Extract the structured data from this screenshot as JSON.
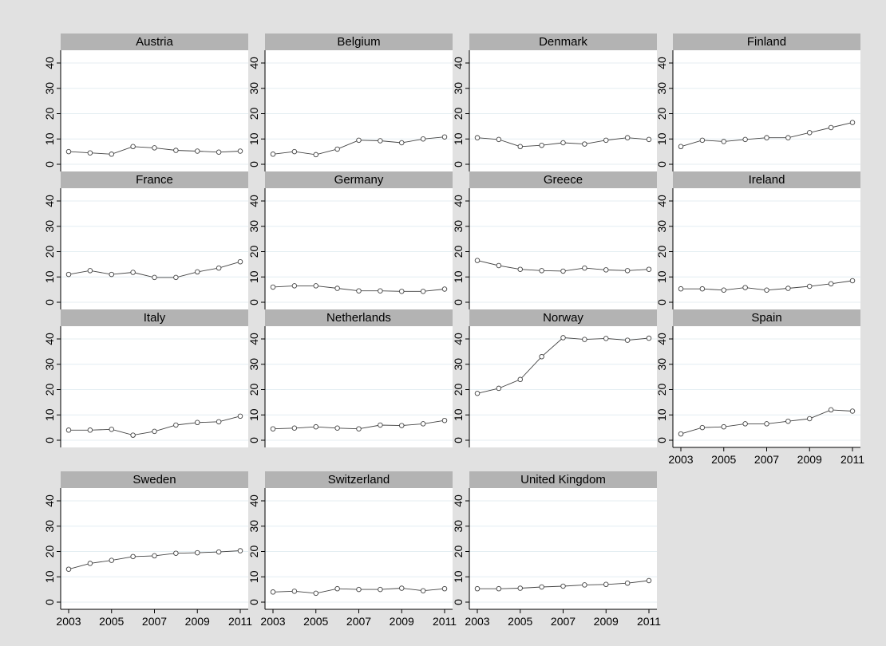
{
  "colors": {
    "outer_background": "#e1e1e1",
    "plot_background": "#ffffff",
    "header_background": "#b3b3b3",
    "gridline": "#e4eef2",
    "series_line": "#444444",
    "marker_fill": "#ffffff",
    "axis": "#000000"
  },
  "chart_data": {
    "type": "line",
    "layout": "small-multiples",
    "marker": "hollow-circle",
    "grid": true,
    "xlim": [
      2003,
      2011
    ],
    "ylim": [
      0,
      40
    ],
    "x": [
      2003,
      2004,
      2005,
      2006,
      2007,
      2008,
      2009,
      2010,
      2011
    ],
    "x_ticks": [
      "2003",
      "2005",
      "2007",
      "2009",
      "2011"
    ],
    "y_ticks": [
      "0",
      "10",
      "20",
      "30",
      "40"
    ],
    "panels": [
      {
        "title": "Austria",
        "values": [
          5,
          4.5,
          4,
          7,
          6.5,
          5.5,
          5.2,
          4.8,
          5.2
        ]
      },
      {
        "title": "Belgium",
        "values": [
          4,
          5,
          3.8,
          6,
          9.5,
          9.3,
          8.5,
          10,
          10.8
        ]
      },
      {
        "title": "Denmark",
        "values": [
          10.5,
          9.8,
          7,
          7.5,
          8.5,
          8,
          9.5,
          10.5,
          9.8
        ]
      },
      {
        "title": "Finland",
        "values": [
          7,
          9.5,
          9,
          9.8,
          10.5,
          10.5,
          12.5,
          14.5,
          16.5
        ]
      },
      {
        "title": "France",
        "values": [
          11,
          12.5,
          11,
          11.8,
          9.8,
          9.8,
          12,
          13.5,
          16
        ]
      },
      {
        "title": "Germany",
        "values": [
          6,
          6.5,
          6.5,
          5.5,
          4.5,
          4.5,
          4.3,
          4.3,
          5.2
        ]
      },
      {
        "title": "Greece",
        "values": [
          16.5,
          14.5,
          13,
          12.5,
          12.3,
          13.5,
          12.8,
          12.5,
          13
        ]
      },
      {
        "title": "Ireland",
        "values": [
          5.3,
          5.3,
          4.8,
          5.8,
          4.8,
          5.5,
          6.3,
          7.3,
          8.5
        ]
      },
      {
        "title": "Italy",
        "values": [
          4,
          4,
          4.3,
          2,
          3.5,
          6,
          7,
          7.3,
          9.5
        ]
      },
      {
        "title": "Netherlands",
        "values": [
          4.5,
          4.8,
          5.3,
          4.8,
          4.5,
          6,
          5.8,
          6.5,
          7.8
        ]
      },
      {
        "title": "Norway",
        "values": [
          18.5,
          20.5,
          24,
          33,
          40.5,
          39.8,
          40.2,
          39.5,
          40.3
        ]
      },
      {
        "title": "Spain",
        "values": [
          2.5,
          5,
          5.3,
          6.5,
          6.5,
          7.5,
          8.5,
          12,
          11.5
        ]
      },
      {
        "title": "Sweden",
        "values": [
          13,
          15.3,
          16.5,
          18,
          18.3,
          19.3,
          19.5,
          19.8,
          20.3
        ]
      },
      {
        "title": "Switzerland",
        "values": [
          4,
          4.3,
          3.5,
          5.3,
          5,
          5,
          5.5,
          4.5,
          5.3
        ]
      },
      {
        "title": "United Kingdom",
        "values": [
          5.3,
          5.3,
          5.5,
          6,
          6.3,
          6.8,
          7,
          7.5,
          8.5
        ]
      }
    ]
  }
}
